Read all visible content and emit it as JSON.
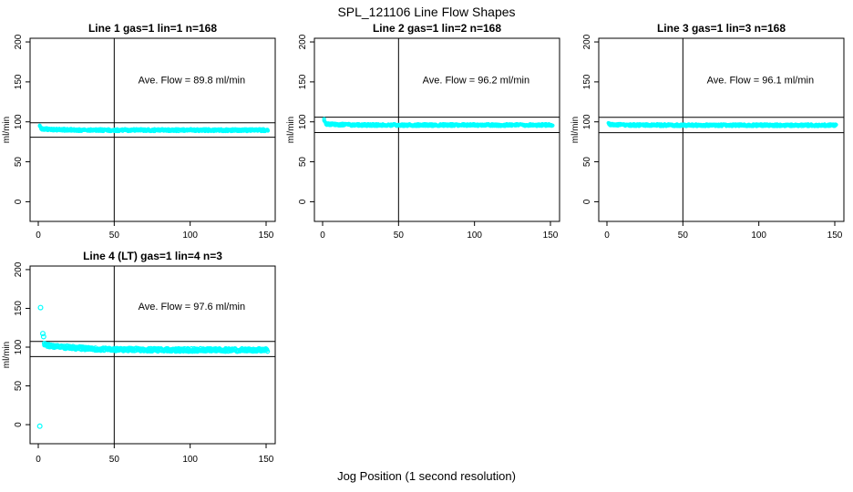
{
  "page": {
    "main_title": "SPL_121106  Line Flow Shapes",
    "x_axis_label": "Jog Position (1 second resolution)",
    "colors": {
      "points": "#00ffff",
      "axis": "#000000",
      "background": "#ffffff"
    }
  },
  "chart_data": [
    {
      "type": "scatter",
      "title": "Line 1 gas=1 lin=1 n=168",
      "gas": 1,
      "lin": 1,
      "n": 168,
      "annotation": "Ave. Flow =  89.8  ml/min",
      "avg_flow_ml_min": 89.8,
      "ylabel": "ml/min",
      "xlim": [
        -5.4,
        156.0
      ],
      "ylim": [
        -24.6,
        204.6
      ],
      "xticks": [
        0,
        50,
        100,
        150
      ],
      "yticks": [
        0,
        50,
        100,
        150,
        200
      ],
      "ref_lines_horizontal": [
        98.8,
        80.8
      ],
      "ref_line_vertical": 50,
      "annotation_xy": [
        101,
        148
      ],
      "outlier_points": [],
      "transient_points": [
        [
          1,
          95.5
        ],
        [
          1,
          94.5
        ],
        [
          1.5,
          93.5
        ],
        [
          2,
          92.6
        ],
        [
          2.5,
          92.0
        ],
        [
          3,
          91.4
        ]
      ],
      "band": {
        "x_start": 2,
        "x_end": 151,
        "y_start": 91.3,
        "y_end": 89.6,
        "tau": 12,
        "spread": 1.4,
        "density": 620,
        "marker_r": 1.5
      }
    },
    {
      "type": "scatter",
      "title": "Line 2 gas=1 lin=2 n=168",
      "gas": 1,
      "lin": 2,
      "n": 168,
      "annotation": "Ave. Flow =  96.2  ml/min",
      "avg_flow_ml_min": 96.2,
      "ylabel": "ml/min",
      "xlim": [
        -5.4,
        156.0
      ],
      "ylim": [
        -24.6,
        204.6
      ],
      "xticks": [
        0,
        50,
        100,
        150
      ],
      "yticks": [
        0,
        50,
        100,
        150,
        200
      ],
      "ref_lines_horizontal": [
        105.8,
        86.6
      ],
      "ref_line_vertical": 50,
      "annotation_xy": [
        101,
        148
      ],
      "outlier_points": [],
      "transient_points": [
        [
          1,
          103.5
        ],
        [
          1,
          101.5
        ],
        [
          1.5,
          100.2
        ],
        [
          2,
          99.0
        ],
        [
          2.5,
          98.0
        ],
        [
          3,
          97.4
        ]
      ],
      "band": {
        "x_start": 2,
        "x_end": 151,
        "y_start": 97.3,
        "y_end": 96.0,
        "tau": 10,
        "spread": 1.3,
        "density": 620,
        "marker_r": 1.5
      }
    },
    {
      "type": "scatter",
      "title": "Line 3 gas=1 lin=3 n=168",
      "gas": 1,
      "lin": 3,
      "n": 168,
      "annotation": "Ave. Flow =  96.1  ml/min",
      "avg_flow_ml_min": 96.1,
      "ylabel": "ml/min",
      "xlim": [
        -5.4,
        156.0
      ],
      "ylim": [
        -24.6,
        204.6
      ],
      "xticks": [
        0,
        50,
        100,
        150
      ],
      "yticks": [
        0,
        50,
        100,
        150,
        200
      ],
      "ref_lines_horizontal": [
        105.7,
        86.5
      ],
      "ref_line_vertical": 50,
      "annotation_xy": [
        101,
        148
      ],
      "outlier_points": [],
      "transient_points": [
        [
          1,
          98.6
        ],
        [
          1.5,
          97.8
        ],
        [
          2,
          97.0
        ]
      ],
      "band": {
        "x_start": 1.5,
        "x_end": 151,
        "y_start": 96.8,
        "y_end": 95.8,
        "tau": 8,
        "spread": 1.3,
        "density": 620,
        "marker_r": 1.5
      }
    },
    {
      "type": "scatter",
      "title": "Line 4 (LT) gas=1 lin=4 n=3",
      "gas": 1,
      "lin": 4,
      "n": 3,
      "annotation": "Ave. Flow =  97.6  ml/min",
      "avg_flow_ml_min": 97.6,
      "ylabel": "ml/min",
      "xlim": [
        -5.4,
        156.0
      ],
      "ylim": [
        -24.6,
        204.6
      ],
      "xticks": [
        0,
        50,
        100,
        150
      ],
      "yticks": [
        0,
        50,
        100,
        150,
        200
      ],
      "ref_lines_horizontal": [
        107.4,
        87.8
      ],
      "ref_line_vertical": 50,
      "annotation_xy": [
        101,
        148
      ],
      "outlier_points": [
        [
          1.5,
          151
        ],
        [
          1,
          -2
        ],
        [
          3,
          117.5
        ],
        [
          3.5,
          113.5
        ]
      ],
      "transient_points": [
        [
          4,
          105
        ],
        [
          4.5,
          103.5
        ]
      ],
      "band": {
        "x_start": 4.5,
        "x_end": 151,
        "y_start": 103,
        "y_end": 96.3,
        "tau": 22,
        "spread": 1.9,
        "density": 430,
        "marker_r": 2.1
      }
    }
  ]
}
